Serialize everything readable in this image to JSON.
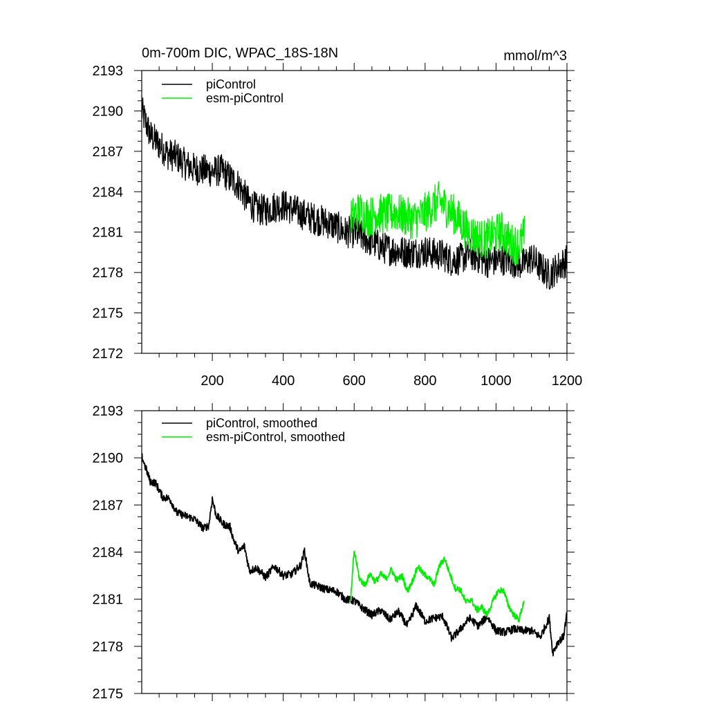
{
  "figure": {
    "title": "0m-700m DIC, WPAC_18S-18N",
    "units": "mmol/m^3"
  },
  "colors": {
    "piControl": "#000000",
    "esm_piControl": "#00ee00"
  },
  "chart_data": [
    {
      "type": "line",
      "name": "annual",
      "xlim": [
        1,
        1200
      ],
      "ylim": [
        2172,
        2193
      ],
      "xticks": [
        200,
        400,
        600,
        800,
        1000,
        1200
      ],
      "xtick_labels": [
        "200",
        "400",
        "600",
        "800",
        "1000",
        "1200"
      ],
      "yticks": [
        2172,
        2175,
        2178,
        2181,
        2184,
        2187,
        2190,
        2193
      ],
      "ytick_labels": [
        "2172",
        "2175",
        "2178",
        "2181",
        "2184",
        "2187",
        "2190",
        "2193"
      ],
      "legend": [
        "piControl",
        "esm-piControl"
      ],
      "series": [
        {
          "name": "piControl",
          "color": "#000000",
          "x": [
            1,
            25,
            50,
            75,
            100,
            125,
            150,
            175,
            200,
            225,
            250,
            275,
            300,
            325,
            350,
            375,
            400,
            425,
            450,
            475,
            500,
            525,
            550,
            575,
            600,
            625,
            650,
            675,
            700,
            725,
            750,
            775,
            800,
            825,
            850,
            875,
            900,
            925,
            950,
            975,
            1000,
            1025,
            1050,
            1075,
            1100,
            1125,
            1150,
            1175,
            1200
          ],
          "values": [
            2190.0,
            2188.2,
            2187.5,
            2186.8,
            2186.6,
            2186.0,
            2185.7,
            2185.6,
            2185.5,
            2185.6,
            2185.0,
            2184.5,
            2183.3,
            2182.7,
            2182.6,
            2182.9,
            2183.0,
            2182.7,
            2182.4,
            2182.1,
            2181.9,
            2181.7,
            2181.4,
            2181.0,
            2181.0,
            2180.6,
            2180.3,
            2179.9,
            2179.7,
            2179.6,
            2179.5,
            2179.5,
            2179.6,
            2179.4,
            2179.3,
            2178.9,
            2179.0,
            2179.4,
            2179.1,
            2178.8,
            2178.9,
            2179.0,
            2178.8,
            2178.6,
            2179.1,
            2178.4,
            2177.8,
            2178.4,
            2178.9
          ],
          "noise": 1.2
        },
        {
          "name": "esm-piControl",
          "color": "#00ee00",
          "x": [
            590,
            615,
            640,
            665,
            690,
            715,
            740,
            765,
            790,
            815,
            840,
            865,
            890,
            915,
            940,
            965,
            990,
            1015,
            1040,
            1065,
            1080
          ],
          "values": [
            2182.0,
            2182.6,
            2182.1,
            2182.4,
            2182.3,
            2182.5,
            2182.2,
            2181.9,
            2182.2,
            2182.8,
            2183.3,
            2182.7,
            2182.1,
            2181.2,
            2180.7,
            2180.4,
            2180.7,
            2181.1,
            2180.2,
            2180.0,
            2180.8
          ],
          "noise": 1.5
        }
      ]
    },
    {
      "type": "line",
      "name": "smoothed",
      "xlim": [
        1,
        1200
      ],
      "ylim": [
        2175,
        2193
      ],
      "xticks": [
        200,
        400,
        600,
        800,
        1000,
        1200
      ],
      "yticks": [
        2175,
        2178,
        2181,
        2184,
        2187,
        2190,
        2193
      ],
      "ytick_labels": [
        "2175",
        "2178",
        "2181",
        "2184",
        "2187",
        "2190",
        "2193"
      ],
      "legend": [
        "piControl, smoothed",
        "esm-piControl, smoothed"
      ],
      "series": [
        {
          "name": "piControl, smoothed",
          "color": "#000000",
          "x": [
            1,
            10,
            25,
            40,
            60,
            80,
            100,
            125,
            150,
            175,
            190,
            200,
            210,
            230,
            250,
            260,
            275,
            290,
            305,
            325,
            350,
            375,
            400,
            425,
            450,
            460,
            475,
            500,
            525,
            550,
            575,
            600,
            625,
            650,
            675,
            700,
            725,
            750,
            775,
            800,
            825,
            850,
            875,
            900,
            925,
            950,
            975,
            1000,
            1025,
            1050,
            1075,
            1100,
            1125,
            1150,
            1160,
            1175,
            1190,
            1200
          ],
          "values": [
            2190.1,
            2189.5,
            2188.5,
            2188.4,
            2187.5,
            2187.4,
            2186.5,
            2186.3,
            2186.1,
            2185.5,
            2185.7,
            2187.4,
            2186.4,
            2185.8,
            2185.6,
            2184.8,
            2184.0,
            2184.4,
            2182.8,
            2183.0,
            2182.4,
            2183.1,
            2182.5,
            2182.6,
            2183.2,
            2184.1,
            2182.0,
            2181.8,
            2181.6,
            2181.5,
            2181.0,
            2180.9,
            2180.4,
            2180.0,
            2180.3,
            2179.7,
            2180.2,
            2179.3,
            2180.6,
            2179.6,
            2179.8,
            2179.9,
            2178.5,
            2179.1,
            2179.8,
            2179.3,
            2179.9,
            2179.0,
            2178.9,
            2179.1,
            2179.0,
            2179.0,
            2178.6,
            2179.8,
            2177.6,
            2178.3,
            2178.6,
            2180.1
          ],
          "noise": 0.25
        },
        {
          "name": "esm-piControl, smoothed",
          "color": "#00ee00",
          "x": [
            590,
            600,
            615,
            630,
            645,
            660,
            675,
            690,
            705,
            720,
            735,
            750,
            765,
            780,
            795,
            810,
            825,
            840,
            855,
            870,
            885,
            900,
            915,
            930,
            945,
            960,
            975,
            990,
            1005,
            1020,
            1035,
            1050,
            1065,
            1080
          ],
          "values": [
            2180.9,
            2184.1,
            2182.3,
            2181.9,
            2182.6,
            2182.1,
            2182.6,
            2182.3,
            2182.9,
            2182.2,
            2182.5,
            2181.5,
            2182.2,
            2183.1,
            2182.6,
            2182.4,
            2181.9,
            2183.1,
            2183.6,
            2182.6,
            2181.7,
            2181.6,
            2180.8,
            2181.0,
            2180.3,
            2180.5,
            2180.0,
            2180.8,
            2181.5,
            2181.6,
            2180.6,
            2180.0,
            2179.7,
            2181.0
          ],
          "noise": 0.2
        }
      ]
    }
  ]
}
